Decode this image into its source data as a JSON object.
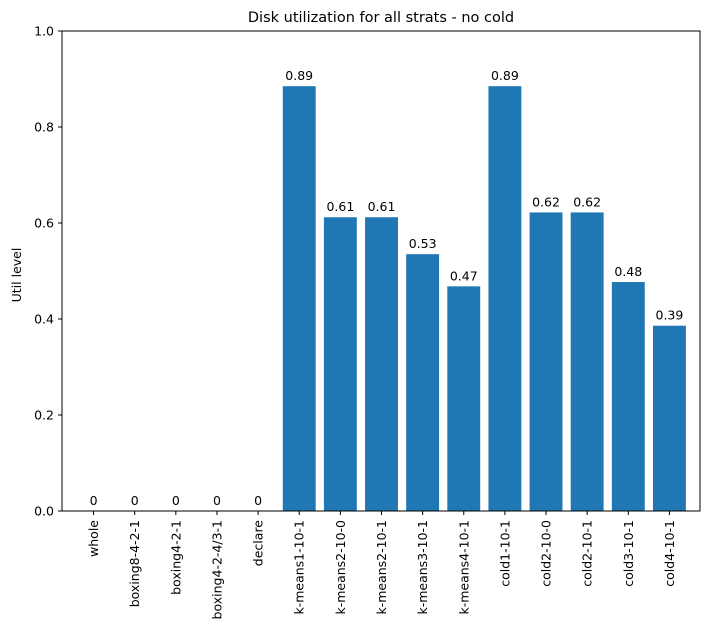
{
  "chart_data": {
    "type": "bar",
    "title": "Disk utilization for all strats - no cold",
    "xlabel": "",
    "ylabel": "Util level",
    "ylim": [
      0,
      1.0
    ],
    "yticks": [
      "0.0",
      "0.2",
      "0.4",
      "0.6",
      "0.8",
      "1.0"
    ],
    "grid": false,
    "bar_color": "#1f77b4",
    "categories": [
      "whole",
      "boxing8-4-2-1",
      "boxing4-2-1",
      "boxing4-2-4/3-1",
      "declare",
      "k-means1-10-1",
      "k-means2-10-0",
      "k-means2-10-1",
      "k-means3-10-1",
      "k-means4-10-1",
      "cold1-10-1",
      "cold2-10-0",
      "cold2-10-1",
      "cold3-10-1",
      "cold4-10-1"
    ],
    "values": [
      0,
      0,
      0,
      0,
      0,
      0.885,
      0.612,
      0.612,
      0.535,
      0.468,
      0.885,
      0.622,
      0.622,
      0.477,
      0.386
    ],
    "data_labels": [
      "0",
      "0",
      "0",
      "0",
      "0",
      "0.89",
      "0.61",
      "0.61",
      "0.53",
      "0.47",
      "0.89",
      "0.62",
      "0.62",
      "0.48",
      "0.39"
    ]
  }
}
